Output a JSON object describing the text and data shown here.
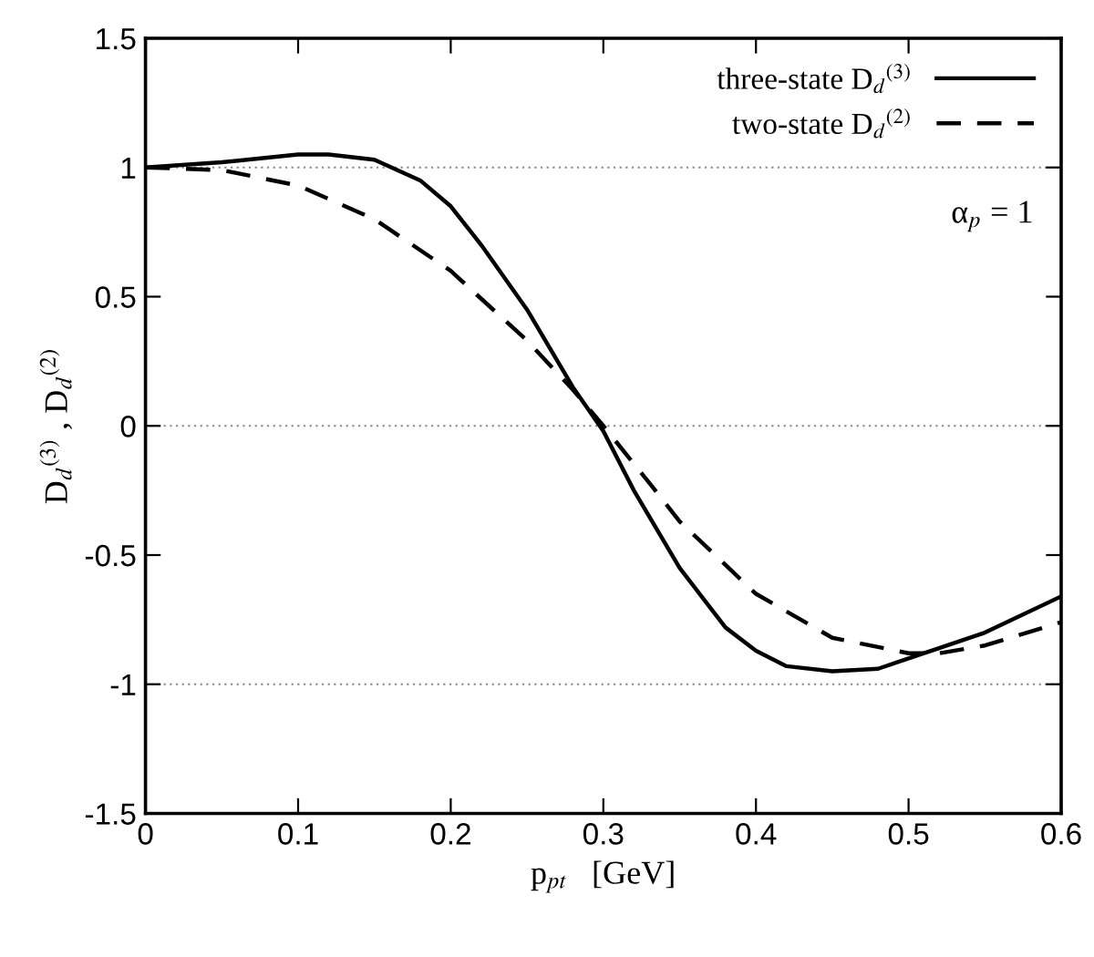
{
  "chart_data": {
    "type": "line",
    "xlabel": "p$_{pt}$   [GeV]",
    "ylabel": "D$_{d}$$^{(3)}$ , D$_{d}$$^{(2)}$",
    "xlim": [
      0,
      0.6
    ],
    "xticks": [
      0,
      0.1,
      0.2,
      0.3,
      0.4,
      0.5,
      0.6
    ],
    "ylim": [
      -1.5,
      1.5
    ],
    "yticks": [
      -1.5,
      -1,
      -0.5,
      0,
      0.5,
      1,
      1.5
    ],
    "legend": "top right",
    "annotations": [
      {
        "text": "α$_{p}$ = 1"
      }
    ],
    "ref_lines": [
      {
        "axis": "y",
        "value": 1,
        "color": "#888888",
        "line_style": "dotted"
      },
      {
        "axis": "y",
        "value": 0,
        "color": "#888888",
        "line_style": "dotted"
      },
      {
        "axis": "y",
        "value": -1,
        "color": "#888888",
        "line_style": "dotted"
      }
    ],
    "series": [
      {
        "name": "three-state D$_{d}$$^{(3)}$",
        "color": "#000000",
        "line_style": "solid",
        "x": [
          0,
          0.05,
          0.1,
          0.12,
          0.15,
          0.18,
          0.2,
          0.22,
          0.25,
          0.28,
          0.3,
          0.32,
          0.35,
          0.38,
          0.4,
          0.42,
          0.45,
          0.48,
          0.5,
          0.55,
          0.6
        ],
        "values": [
          1.0,
          1.02,
          1.05,
          1.05,
          1.03,
          0.95,
          0.85,
          0.7,
          0.45,
          0.15,
          -0.02,
          -0.25,
          -0.55,
          -0.78,
          -0.87,
          -0.93,
          -0.95,
          -0.94,
          -0.9,
          -0.8,
          -0.66
        ]
      },
      {
        "name": "two-state D$_{d}$$^{(2)}$",
        "color": "#000000",
        "line_style": "dashed",
        "x": [
          0,
          0.05,
          0.1,
          0.15,
          0.2,
          0.25,
          0.28,
          0.3,
          0.33,
          0.35,
          0.4,
          0.45,
          0.5,
          0.52,
          0.55,
          0.6
        ],
        "values": [
          1.0,
          0.99,
          0.93,
          0.8,
          0.6,
          0.33,
          0.14,
          0,
          -0.22,
          -0.37,
          -0.65,
          -0.82,
          -0.88,
          -0.88,
          -0.85,
          -0.76
        ]
      }
    ]
  }
}
